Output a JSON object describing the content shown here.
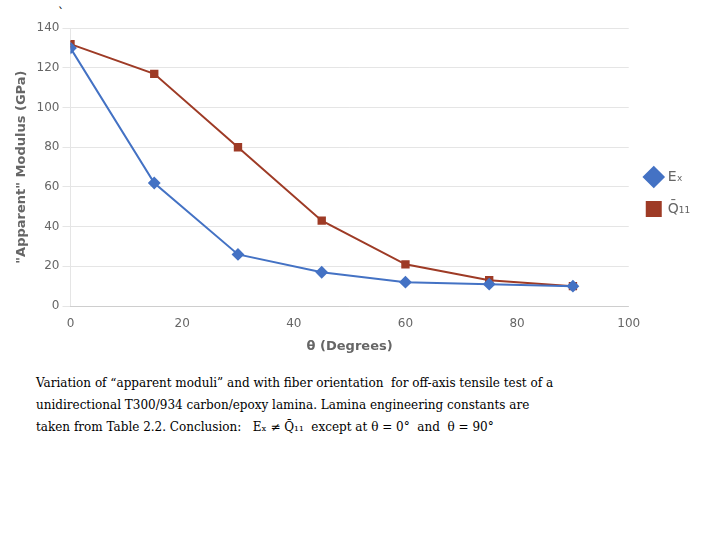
{
  "chart_data": {
    "type": "line",
    "x_label": "θ (Degrees)",
    "y_label": "\"Apparent\" Modulus (GPa)",
    "annotations": [
      "`",
      "Variation of “apparent moduli” and with fiber orientation  for off-axis tensile test of a",
      "unidirectional T300/934 carbon/epoxy lamina. Lamina engineering constants are",
      "taken from Table 2.2. Conclusion:   Eₓ ≠ Q̄₁₁  except at θ = 0°  and  θ = 90°"
    ],
    "x": [
      0,
      15,
      30,
      45,
      60,
      75,
      90
    ],
    "series": [
      {
        "name": "Eₓ",
        "color": "#4472C4",
        "marker": "diamond",
        "values": [
          130,
          62,
          26,
          17,
          12,
          11,
          10
        ]
      },
      {
        "name": "Q̄₁₁",
        "color": "#9E3B26",
        "marker": "square",
        "values": [
          132,
          117,
          80,
          43,
          21,
          13,
          10
        ]
      }
    ],
    "xlim": [
      0,
      100
    ],
    "ylim": [
      0,
      140
    ],
    "xticks": [
      0,
      20,
      40,
      60,
      80,
      100
    ],
    "yticks": [
      0,
      20,
      40,
      60,
      80,
      100,
      120,
      140
    ],
    "grid": "y",
    "legend": "right"
  }
}
